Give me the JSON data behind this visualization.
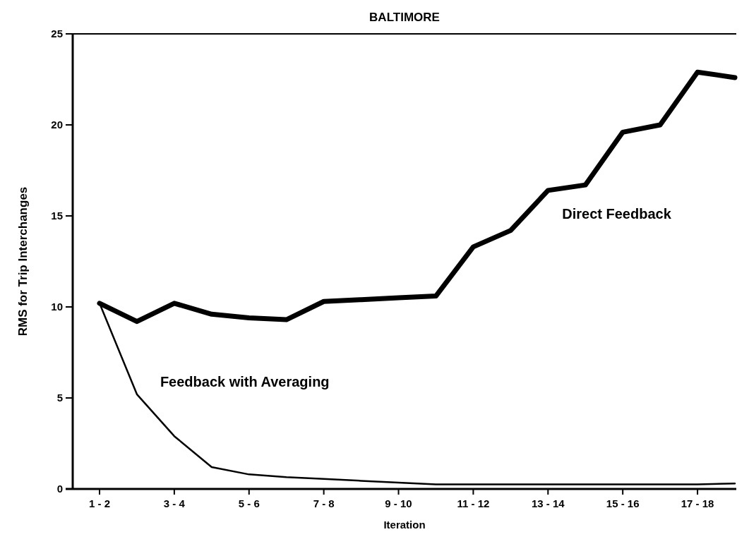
{
  "chart_data": {
    "type": "line",
    "title": "BALTIMORE",
    "xlabel": "Iteration",
    "ylabel": "RMS for Trip Interchanges",
    "categories": [
      "1 - 2",
      null,
      "3 - 4",
      null,
      "5 - 6",
      null,
      "7 - 8",
      null,
      "9 - 10",
      null,
      "11 - 12",
      null,
      "13 - 14",
      null,
      "15 - 16",
      null,
      "17 - 18",
      null
    ],
    "series": [
      {
        "name": "Direct Feedback",
        "color": "#000000",
        "values": [
          10.2,
          9.2,
          10.2,
          9.6,
          9.4,
          9.3,
          10.3,
          10.4,
          10.5,
          10.6,
          13.3,
          14.2,
          16.4,
          16.7,
          19.6,
          20.0,
          22.9,
          22.6
        ]
      },
      {
        "name": "Feedback with Averaging",
        "color": "#000000",
        "values": [
          10.2,
          5.2,
          2.9,
          1.2,
          0.8,
          0.65,
          0.55,
          0.45,
          0.35,
          0.25,
          0.25,
          0.25,
          0.25,
          0.25,
          0.25,
          0.25,
          0.25,
          0.3
        ]
      }
    ],
    "ylim": [
      0,
      25
    ],
    "yticks": [
      0,
      5,
      10,
      15,
      20,
      25
    ],
    "grid": false,
    "marker": "none",
    "line_style": "solid"
  }
}
